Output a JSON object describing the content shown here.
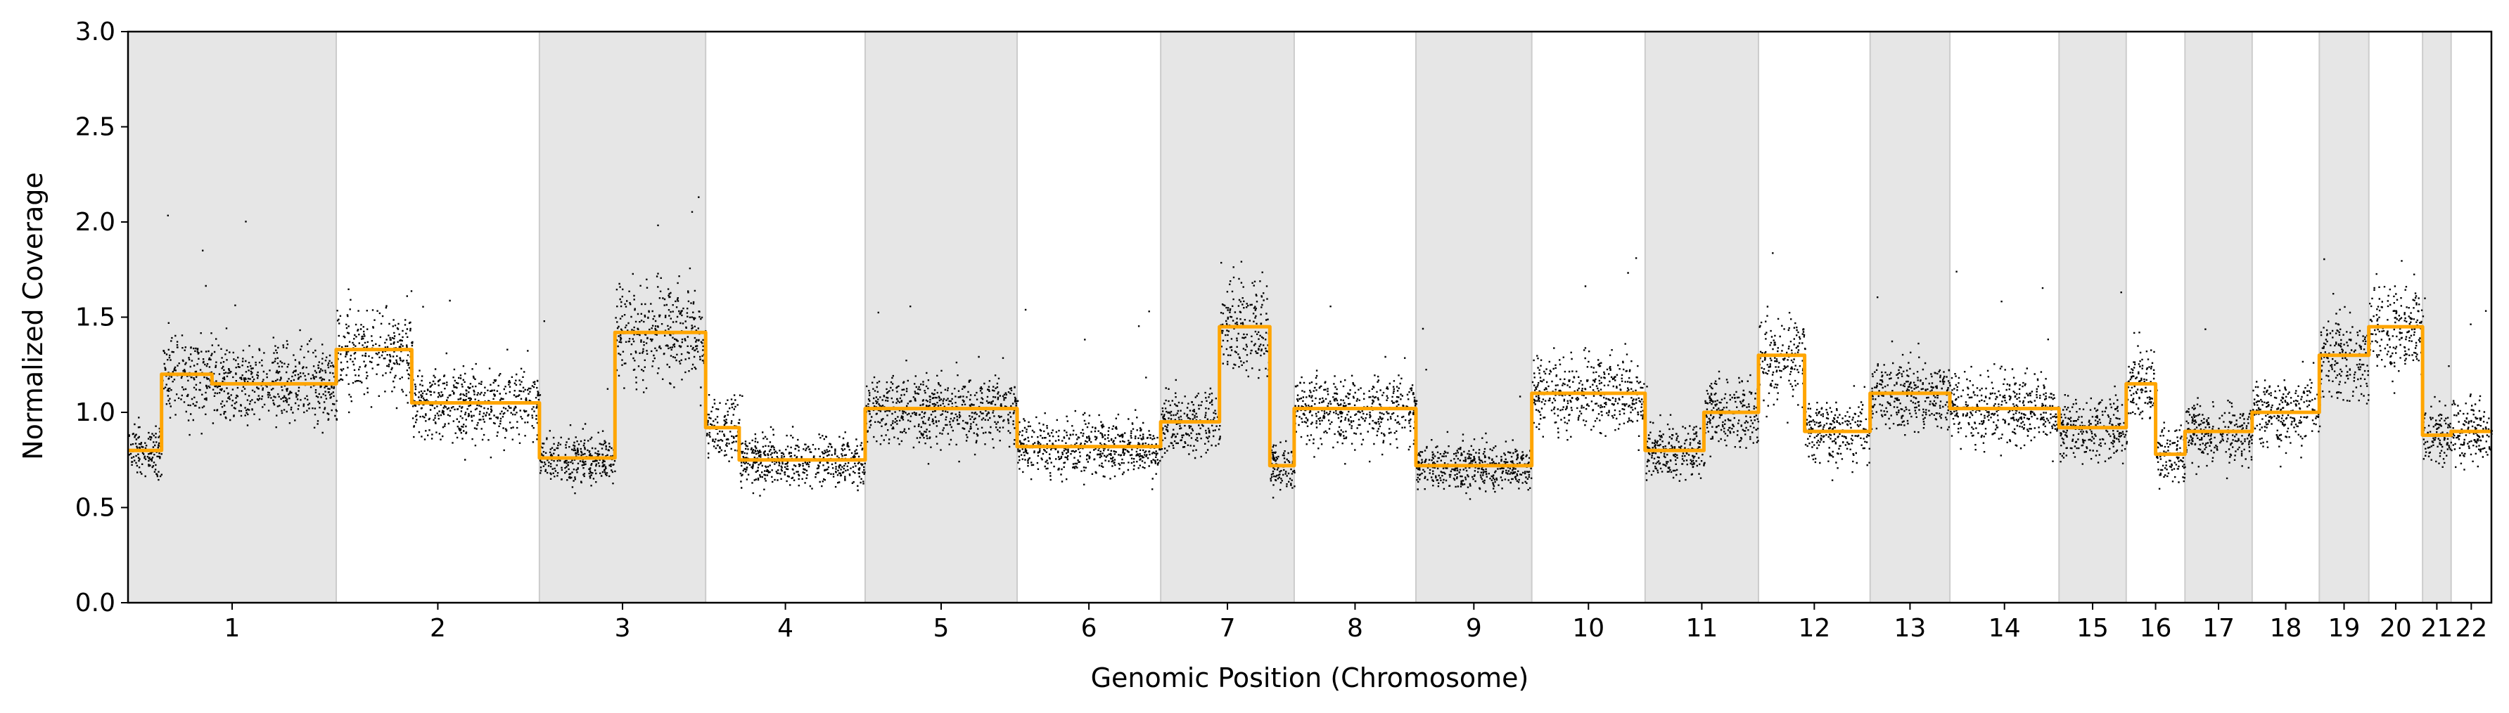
{
  "chart_data": {
    "type": "scatter",
    "xlabel": "Genomic Position (Chromosome)",
    "ylabel": "Normalized Coverage",
    "ylim": [
      0.0,
      3.0
    ],
    "yticks": [
      "0.0",
      "0.5",
      "1.0",
      "1.5",
      "2.0",
      "2.5",
      "3.0"
    ],
    "grid": false,
    "legend": "none",
    "chromosomes": [
      {
        "label": "1",
        "start": 0,
        "end": 248,
        "shaded": true,
        "segments": [
          [
            0,
            40,
            0.8
          ],
          [
            40,
            100,
            1.2
          ],
          [
            100,
            248,
            1.15
          ]
        ]
      },
      {
        "label": "2",
        "start": 248,
        "end": 490,
        "shaded": false,
        "segments": [
          [
            0,
            90,
            1.33
          ],
          [
            90,
            242,
            1.05
          ]
        ]
      },
      {
        "label": "3",
        "start": 490,
        "end": 688,
        "shaded": true,
        "segments": [
          [
            0,
            90,
            0.76
          ],
          [
            90,
            198,
            1.42
          ]
        ]
      },
      {
        "label": "4",
        "start": 688,
        "end": 878,
        "shaded": false,
        "segments": [
          [
            0,
            40,
            0.92
          ],
          [
            40,
            190,
            0.75
          ]
        ]
      },
      {
        "label": "5",
        "start": 878,
        "end": 1059,
        "shaded": true,
        "segments": [
          [
            0,
            181,
            1.02
          ]
        ]
      },
      {
        "label": "6",
        "start": 1059,
        "end": 1230,
        "shaded": false,
        "segments": [
          [
            0,
            171,
            0.82
          ]
        ]
      },
      {
        "label": "7",
        "start": 1230,
        "end": 1389,
        "shaded": true,
        "segments": [
          [
            0,
            70,
            0.95
          ],
          [
            70,
            130,
            1.45
          ],
          [
            130,
            159,
            0.72
          ]
        ]
      },
      {
        "label": "8",
        "start": 1389,
        "end": 1534,
        "shaded": false,
        "segments": [
          [
            0,
            145,
            1.02
          ]
        ]
      },
      {
        "label": "9",
        "start": 1534,
        "end": 1672,
        "shaded": true,
        "segments": [
          [
            0,
            138,
            0.72
          ]
        ]
      },
      {
        "label": "10",
        "start": 1672,
        "end": 1807,
        "shaded": false,
        "segments": [
          [
            0,
            135,
            1.1
          ]
        ]
      },
      {
        "label": "11",
        "start": 1807,
        "end": 1942,
        "shaded": true,
        "segments": [
          [
            0,
            70,
            0.8
          ],
          [
            70,
            135,
            1.0
          ]
        ]
      },
      {
        "label": "12",
        "start": 1942,
        "end": 2075,
        "shaded": false,
        "segments": [
          [
            0,
            55,
            1.3
          ],
          [
            55,
            133,
            0.9
          ]
        ]
      },
      {
        "label": "13",
        "start": 2075,
        "end": 2170,
        "shaded": true,
        "segments": [
          [
            0,
            95,
            1.1
          ]
        ]
      },
      {
        "label": "14",
        "start": 2170,
        "end": 2300,
        "shaded": false,
        "segments": [
          [
            0,
            130,
            1.02
          ]
        ]
      },
      {
        "label": "15",
        "start": 2300,
        "end": 2380,
        "shaded": true,
        "segments": [
          [
            0,
            80,
            0.92
          ]
        ]
      },
      {
        "label": "16",
        "start": 2380,
        "end": 2450,
        "shaded": false,
        "segments": [
          [
            0,
            35,
            1.15
          ],
          [
            35,
            70,
            0.78
          ]
        ]
      },
      {
        "label": "17",
        "start": 2450,
        "end": 2530,
        "shaded": true,
        "segments": [
          [
            0,
            80,
            0.9
          ]
        ]
      },
      {
        "label": "18",
        "start": 2530,
        "end": 2610,
        "shaded": false,
        "segments": [
          [
            0,
            80,
            1.0
          ]
        ]
      },
      {
        "label": "19",
        "start": 2610,
        "end": 2669,
        "shaded": true,
        "segments": [
          [
            0,
            59,
            1.3
          ]
        ]
      },
      {
        "label": "20",
        "start": 2669,
        "end": 2733,
        "shaded": false,
        "segments": [
          [
            0,
            64,
            1.45
          ]
        ]
      },
      {
        "label": "21",
        "start": 2733,
        "end": 2767,
        "shaded": true,
        "segments": [
          [
            0,
            34,
            0.88
          ]
        ]
      },
      {
        "label": "22",
        "start": 2767,
        "end": 2815,
        "shaded": false,
        "segments": [
          [
            0,
            48,
            0.9
          ]
        ]
      }
    ],
    "segment_line_color": "#ffa500",
    "point_color": "#000000",
    "band_color": "#e6e6e6"
  }
}
